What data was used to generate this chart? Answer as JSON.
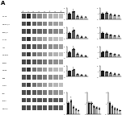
{
  "bg_color": "#ffffff",
  "gel_n_rows": 13,
  "gel_n_lanes": 8,
  "row_labels": [
    "MC1R",
    "p-ERK1/2",
    "ERK1/2",
    "p-AKT",
    "AKT",
    "p-CREB",
    "CREB",
    "p-p38",
    "p38",
    "p-JNK",
    "JNK",
    "PCNA",
    "β-actin"
  ],
  "sample_labels": [
    "Con",
    "H",
    "L1",
    "L2",
    "L3",
    "L4",
    "L5",
    "L6"
  ],
  "bar_colors": [
    "#1a1a1a",
    "#555555",
    "#888888",
    "#aaaaaa",
    "#cccccc"
  ],
  "bar_groups": [
    {
      "vals": [
        1.0,
        1.35,
        0.55,
        0.42,
        0.38
      ],
      "errs": [
        0.08,
        0.13,
        0.07,
        0.06,
        0.05
      ],
      "ylim": [
        0,
        2.0
      ],
      "stars": [
        false,
        true,
        false,
        false,
        false
      ]
    },
    {
      "vals": [
        1.0,
        1.15,
        0.85,
        0.72,
        0.65
      ],
      "errs": [
        0.08,
        0.1,
        0.07,
        0.07,
        0.06
      ],
      "ylim": [
        0,
        2.0
      ],
      "stars": [
        false,
        false,
        false,
        false,
        false
      ]
    },
    {
      "vals": [
        1.0,
        1.45,
        0.52,
        0.28,
        0.22
      ],
      "errs": [
        0.09,
        0.14,
        0.07,
        0.05,
        0.04
      ],
      "ylim": [
        0,
        2.0
      ],
      "stars": [
        false,
        true,
        false,
        false,
        false
      ]
    },
    {
      "vals": [
        1.0,
        0.82,
        0.62,
        0.5,
        0.4
      ],
      "errs": [
        0.08,
        0.08,
        0.07,
        0.06,
        0.05
      ],
      "ylim": [
        0,
        2.0
      ],
      "stars": [
        false,
        false,
        false,
        false,
        false
      ]
    },
    {
      "vals": [
        1.0,
        1.55,
        0.68,
        0.38,
        0.28
      ],
      "errs": [
        0.09,
        0.15,
        0.08,
        0.06,
        0.05
      ],
      "ylim": [
        0,
        2.0
      ],
      "stars": [
        false,
        true,
        false,
        false,
        false
      ]
    },
    {
      "vals": [
        1.0,
        1.08,
        0.78,
        0.58,
        0.48
      ],
      "errs": [
        0.08,
        0.1,
        0.08,
        0.07,
        0.06
      ],
      "ylim": [
        0,
        2.0
      ],
      "stars": [
        false,
        false,
        false,
        false,
        false
      ]
    },
    {
      "vals": [
        1.0,
        1.28,
        0.48,
        0.32,
        0.25
      ],
      "errs": [
        0.09,
        0.12,
        0.07,
        0.05,
        0.04
      ],
      "ylim": [
        0,
        2.0
      ],
      "stars": [
        false,
        true,
        false,
        false,
        false
      ]
    },
    {
      "vals": [
        1.0,
        0.88,
        0.68,
        0.52,
        0.42
      ],
      "errs": [
        0.08,
        0.09,
        0.07,
        0.06,
        0.05
      ],
      "ylim": [
        0,
        2.0
      ],
      "stars": [
        false,
        false,
        false,
        false,
        false
      ]
    },
    {
      "vals": [
        1.0,
        1.22,
        0.62,
        0.42,
        0.32
      ],
      "errs": [
        0.09,
        0.11,
        0.08,
        0.06,
        0.05
      ],
      "ylim": [
        0,
        2.0
      ],
      "stars": [
        false,
        true,
        false,
        false,
        false
      ]
    },
    {
      "vals": [
        1.0,
        0.98,
        0.72,
        0.58,
        0.48
      ],
      "errs": [
        0.08,
        0.1,
        0.08,
        0.07,
        0.06
      ],
      "ylim": [
        0,
        2.0
      ],
      "stars": [
        false,
        false,
        false,
        false,
        false
      ]
    },
    {
      "vals": [
        1.0,
        0.68,
        0.52,
        0.42,
        0.32
      ],
      "errs": [
        0.08,
        0.08,
        0.07,
        0.06,
        0.05
      ],
      "ylim": [
        0,
        2.0
      ],
      "stars": [
        false,
        false,
        false,
        false,
        false
      ]
    }
  ],
  "band_intensities": [
    [
      0.75,
      0.85,
      0.55,
      0.45,
      0.38,
      0.32,
      0.28,
      0.25
    ],
    [
      0.7,
      0.8,
      0.62,
      0.55,
      0.48,
      0.42,
      0.38,
      0.35
    ],
    [
      0.72,
      0.78,
      0.68,
      0.62,
      0.58,
      0.52,
      0.48,
      0.45
    ],
    [
      0.68,
      0.82,
      0.52,
      0.42,
      0.35,
      0.3,
      0.26,
      0.22
    ],
    [
      0.7,
      0.75,
      0.65,
      0.58,
      0.52,
      0.46,
      0.42,
      0.38
    ],
    [
      0.65,
      0.78,
      0.58,
      0.48,
      0.4,
      0.34,
      0.3,
      0.26
    ],
    [
      0.72,
      0.76,
      0.66,
      0.6,
      0.54,
      0.48,
      0.44,
      0.4
    ],
    [
      0.68,
      0.8,
      0.55,
      0.45,
      0.38,
      0.32,
      0.28,
      0.24
    ],
    [
      0.7,
      0.74,
      0.64,
      0.58,
      0.52,
      0.46,
      0.42,
      0.38
    ],
    [
      0.66,
      0.76,
      0.56,
      0.46,
      0.39,
      0.33,
      0.29,
      0.25
    ],
    [
      0.7,
      0.73,
      0.65,
      0.59,
      0.53,
      0.47,
      0.43,
      0.39
    ],
    [
      0.72,
      0.71,
      0.7,
      0.69,
      0.68,
      0.67,
      0.66,
      0.65
    ],
    [
      0.72,
      0.71,
      0.7,
      0.69,
      0.68,
      0.67,
      0.66,
      0.65
    ]
  ]
}
